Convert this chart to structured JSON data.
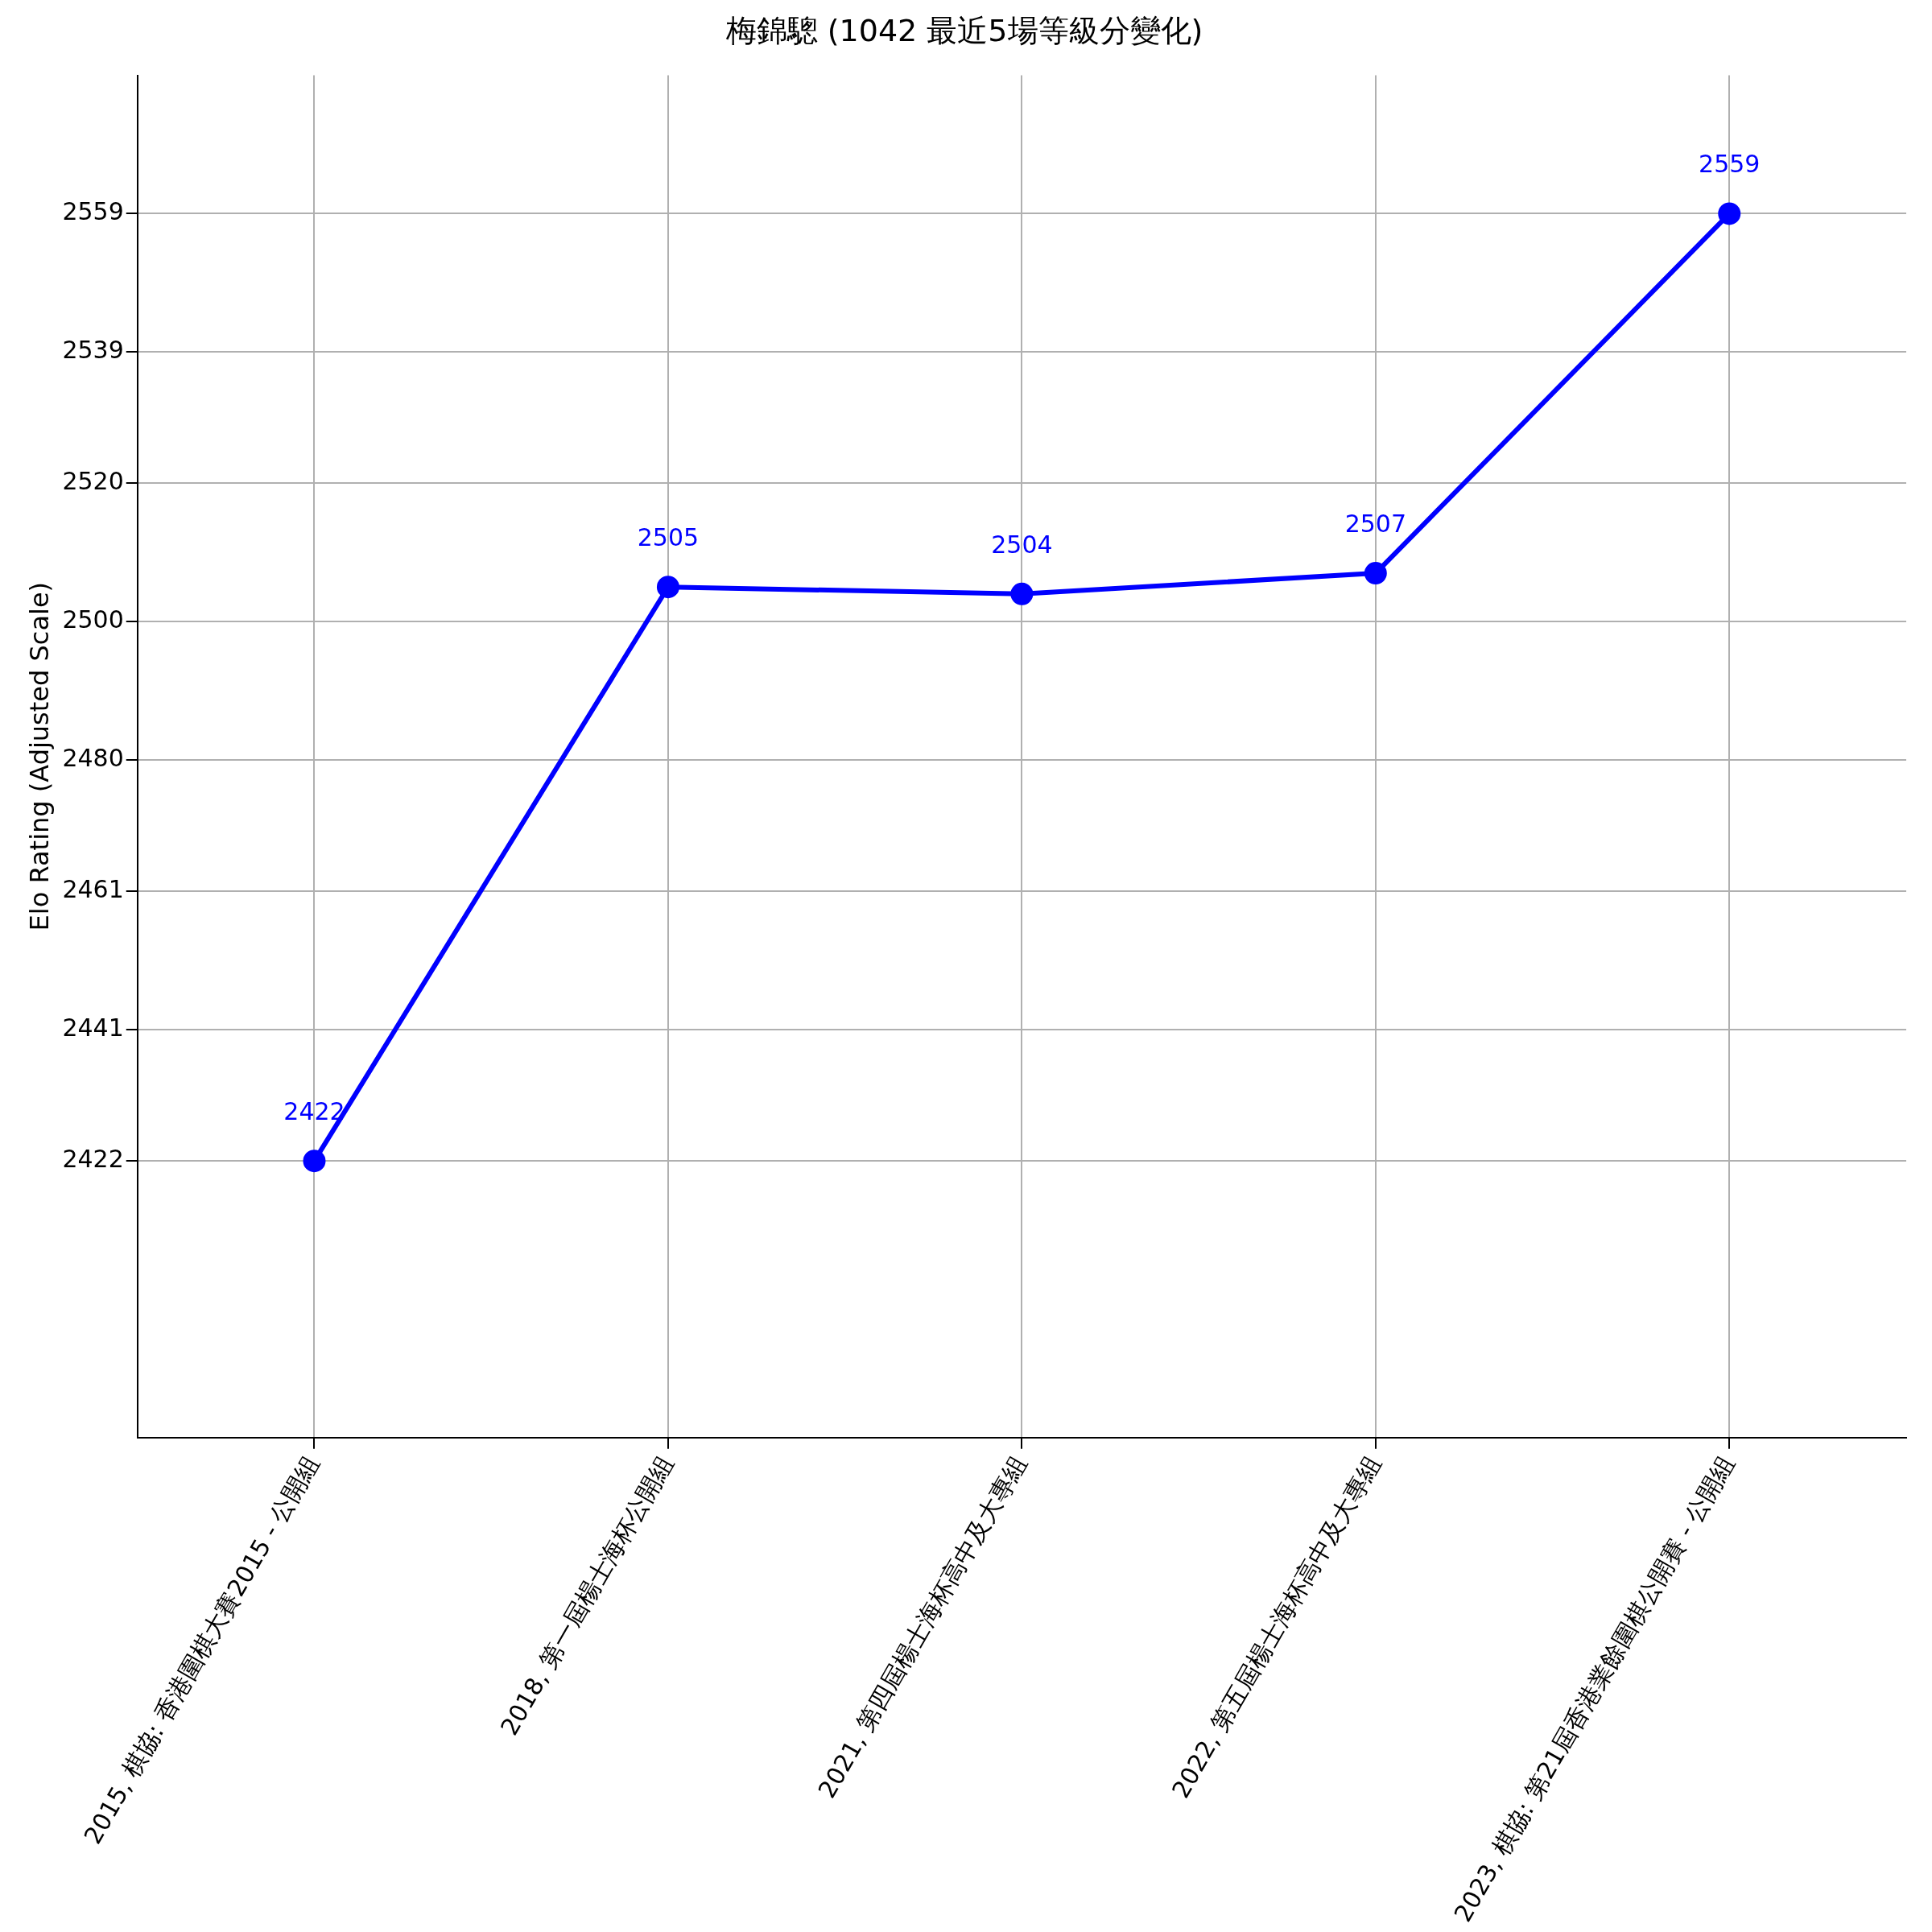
{
  "chart_data": {
    "type": "line",
    "title": "梅錦驄 (1042 最近5場等級分變化)",
    "ylabel": "Elo Rating (Adjusted Scale)",
    "categories": [
      "2015, 棋協: 香港圍棋大賽2015 - 公開組",
      "2018, 第一屆楊士海杯公開組",
      "2021, 第四屆楊士海杯高中及大專組",
      "2022, 第五屆楊士海杯高中及大專組",
      "2023, 棋協: 第21屆香港業餘圍棋公開賽 - 公開組"
    ],
    "series": [
      {
        "color": "#0000ff",
        "values": [
          2422,
          2505,
          2504,
          2507,
          2559
        ]
      }
    ],
    "ylim": [
      2382,
      2579
    ],
    "yticks": [
      2422,
      2441,
      2461,
      2480,
      2500,
      2520,
      2539,
      2559
    ],
    "grid": true,
    "marker": "circle",
    "line_style": "solid",
    "data_labels": true,
    "legend": false
  }
}
